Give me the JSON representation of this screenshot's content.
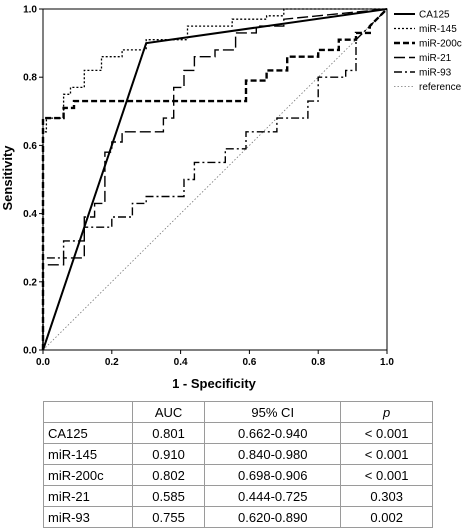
{
  "chart_data": {
    "type": "line",
    "title": "",
    "xlabel": "1 - Specificity",
    "ylabel": "Sensitivity",
    "xlim": [
      0,
      1
    ],
    "ylim": [
      0,
      1
    ],
    "x_ticks": [
      "0.0",
      "0.2",
      "0.4",
      "0.6",
      "0.8",
      "1.0"
    ],
    "y_ticks": [
      "0.0",
      "0.2",
      "0.4",
      "0.6",
      "0.8",
      "1.0"
    ],
    "grid": false,
    "legend_position": "right",
    "series": [
      {
        "name": "CA125",
        "style": "solid",
        "points": [
          [
            0,
            0
          ],
          [
            0.3,
            0.9
          ],
          [
            1,
            1
          ]
        ]
      },
      {
        "name": "miR-145",
        "style": "dotted",
        "points": [
          [
            0,
            0
          ],
          [
            0,
            0.64
          ],
          [
            0.01,
            0.64
          ],
          [
            0.01,
            0.68
          ],
          [
            0.06,
            0.68
          ],
          [
            0.06,
            0.75
          ],
          [
            0.08,
            0.75
          ],
          [
            0.08,
            0.77
          ],
          [
            0.12,
            0.77
          ],
          [
            0.12,
            0.82
          ],
          [
            0.17,
            0.82
          ],
          [
            0.17,
            0.86
          ],
          [
            0.23,
            0.86
          ],
          [
            0.23,
            0.88
          ],
          [
            0.3,
            0.88
          ],
          [
            0.3,
            0.91
          ],
          [
            0.42,
            0.91
          ],
          [
            0.42,
            0.95
          ],
          [
            0.55,
            0.95
          ],
          [
            0.55,
            0.97
          ],
          [
            0.65,
            0.97
          ],
          [
            0.65,
            0.98
          ],
          [
            0.7,
            0.98
          ],
          [
            0.7,
            1
          ],
          [
            1,
            1
          ]
        ]
      },
      {
        "name": "miR-200c",
        "style": "dashed",
        "points": [
          [
            0,
            0
          ],
          [
            0,
            0.68
          ],
          [
            0.06,
            0.68
          ],
          [
            0.06,
            0.71
          ],
          [
            0.09,
            0.71
          ],
          [
            0.09,
            0.73
          ],
          [
            0.59,
            0.73
          ],
          [
            0.59,
            0.79
          ],
          [
            0.65,
            0.79
          ],
          [
            0.65,
            0.82
          ],
          [
            0.71,
            0.82
          ],
          [
            0.71,
            0.86
          ],
          [
            0.8,
            0.86
          ],
          [
            0.8,
            0.88
          ],
          [
            0.86,
            0.88
          ],
          [
            0.86,
            0.91
          ],
          [
            0.91,
            0.91
          ],
          [
            0.91,
            0.93
          ],
          [
            0.95,
            0.93
          ],
          [
            0.95,
            0.95
          ],
          [
            1,
            1
          ]
        ]
      },
      {
        "name": "miR-21",
        "style": "longdash",
        "points": [
          [
            0,
            0
          ],
          [
            0,
            0.25
          ],
          [
            0.06,
            0.25
          ],
          [
            0.06,
            0.27
          ],
          [
            0.12,
            0.27
          ],
          [
            0.12,
            0.39
          ],
          [
            0.15,
            0.39
          ],
          [
            0.15,
            0.43
          ],
          [
            0.18,
            0.43
          ],
          [
            0.18,
            0.58
          ],
          [
            0.2,
            0.58
          ],
          [
            0.2,
            0.61
          ],
          [
            0.23,
            0.61
          ],
          [
            0.23,
            0.64
          ],
          [
            0.35,
            0.64
          ],
          [
            0.35,
            0.68
          ],
          [
            0.38,
            0.68
          ],
          [
            0.38,
            0.77
          ],
          [
            0.41,
            0.77
          ],
          [
            0.41,
            0.82
          ],
          [
            0.44,
            0.82
          ],
          [
            0.44,
            0.86
          ],
          [
            0.5,
            0.86
          ],
          [
            0.5,
            0.88
          ],
          [
            0.56,
            0.88
          ],
          [
            0.56,
            0.93
          ],
          [
            0.62,
            0.93
          ],
          [
            0.62,
            0.95
          ],
          [
            0.7,
            0.95
          ],
          [
            0.7,
            0.97
          ],
          [
            1,
            1
          ]
        ]
      },
      {
        "name": "miR-93",
        "style": "dashdot",
        "points": [
          [
            0,
            0
          ],
          [
            0,
            0.27
          ],
          [
            0.06,
            0.27
          ],
          [
            0.06,
            0.32
          ],
          [
            0.12,
            0.32
          ],
          [
            0.12,
            0.36
          ],
          [
            0.2,
            0.36
          ],
          [
            0.2,
            0.39
          ],
          [
            0.26,
            0.39
          ],
          [
            0.26,
            0.43
          ],
          [
            0.3,
            0.43
          ],
          [
            0.3,
            0.45
          ],
          [
            0.41,
            0.45
          ],
          [
            0.41,
            0.5
          ],
          [
            0.44,
            0.5
          ],
          [
            0.44,
            0.55
          ],
          [
            0.53,
            0.55
          ],
          [
            0.53,
            0.59
          ],
          [
            0.59,
            0.59
          ],
          [
            0.59,
            0.64
          ],
          [
            0.68,
            0.64
          ],
          [
            0.68,
            0.68
          ],
          [
            0.77,
            0.68
          ],
          [
            0.77,
            0.73
          ],
          [
            0.8,
            0.73
          ],
          [
            0.8,
            0.8
          ],
          [
            0.88,
            0.8
          ],
          [
            0.88,
            0.82
          ],
          [
            0.91,
            0.82
          ],
          [
            0.91,
            0.91
          ],
          [
            1,
            1
          ]
        ]
      },
      {
        "name": "reference",
        "style": "reference",
        "points": [
          [
            0,
            0
          ],
          [
            1,
            1
          ]
        ]
      }
    ]
  },
  "table": {
    "headers": {
      "name": "",
      "auc": "AUC",
      "ci": "95% CI",
      "p": "p"
    },
    "rows": [
      {
        "name": "CA125",
        "auc": "0.801",
        "ci": "0.662-0.940",
        "p": "< 0.001"
      },
      {
        "name": "miR-145",
        "auc": "0.910",
        "ci": "0.840-0.980",
        "p": "< 0.001"
      },
      {
        "name": "miR-200c",
        "auc": "0.802",
        "ci": "0.698-0.906",
        "p": "< 0.001"
      },
      {
        "name": "miR-21",
        "auc": "0.585",
        "ci": "0.444-0.725",
        "p": "0.303"
      },
      {
        "name": "miR-93",
        "auc": "0.755",
        "ci": "0.620-0.890",
        "p": "0.002"
      }
    ]
  }
}
